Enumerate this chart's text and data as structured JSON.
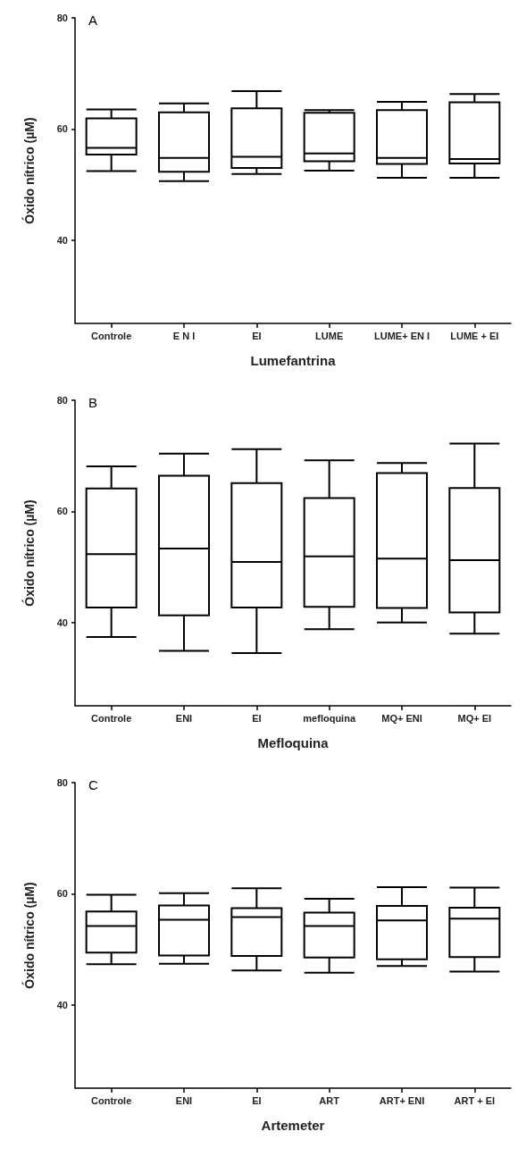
{
  "chart_data": [
    {
      "type": "box",
      "title": "A",
      "xlabel": "Lumefantrina",
      "ylabel": "Óxido nítrico (µM)",
      "categories": [
        "Controle",
        "E N I",
        "EI",
        "LUME",
        "LUME+ EN I",
        "LUME + EI"
      ],
      "ylim": [
        25,
        80
      ],
      "yticks": [
        40,
        60,
        80
      ],
      "grid": false,
      "boxes": [
        {
          "low": 52.4,
          "q1": 55.4,
          "median": 56.6,
          "q3": 61.9,
          "high": 63.5
        },
        {
          "low": 50.6,
          "q1": 52.3,
          "median": 54.8,
          "q3": 63.0,
          "high": 64.6
        },
        {
          "low": 51.9,
          "q1": 53.0,
          "median": 55.0,
          "q3": 63.7,
          "high": 66.8
        },
        {
          "low": 52.5,
          "q1": 54.2,
          "median": 55.6,
          "q3": 62.9,
          "high": 63.4
        },
        {
          "low": 51.2,
          "q1": 53.7,
          "median": 54.8,
          "q3": 63.4,
          "high": 64.9
        },
        {
          "low": 51.2,
          "q1": 53.8,
          "median": 54.6,
          "q3": 64.8,
          "high": 66.3
        }
      ]
    },
    {
      "type": "box",
      "title": "B",
      "xlabel": "Mefloquina",
      "ylabel": "Óxido nítrico (µM)",
      "categories": [
        "Controle",
        "ENI",
        "EI",
        "mefloquina",
        "MQ+ ENI",
        "MQ+ EI"
      ],
      "ylim": [
        25,
        80
      ],
      "yticks": [
        40,
        60,
        80
      ],
      "grid": false,
      "boxes": [
        {
          "low": 37.4,
          "q1": 42.7,
          "median": 52.3,
          "q3": 64.1,
          "high": 68.1
        },
        {
          "low": 34.9,
          "q1": 41.3,
          "median": 53.3,
          "q3": 66.4,
          "high": 70.4
        },
        {
          "low": 34.5,
          "q1": 42.7,
          "median": 50.9,
          "q3": 65.1,
          "high": 71.2
        },
        {
          "low": 38.8,
          "q1": 42.8,
          "median": 51.9,
          "q3": 62.4,
          "high": 69.2
        },
        {
          "low": 40.0,
          "q1": 42.6,
          "median": 51.5,
          "q3": 66.9,
          "high": 68.7
        },
        {
          "low": 38.0,
          "q1": 41.8,
          "median": 51.2,
          "q3": 64.2,
          "high": 72.2
        }
      ]
    },
    {
      "type": "box",
      "title": "C",
      "xlabel": "Artemeter",
      "ylabel": "Óxido nítrico (µM)",
      "categories": [
        "Controle",
        "ENI",
        "EI",
        "ART",
        "ART+ ENI",
        "ART + EI"
      ],
      "ylim": [
        25,
        80
      ],
      "yticks": [
        40,
        60,
        80
      ],
      "grid": false,
      "boxes": [
        {
          "low": 47.3,
          "q1": 49.4,
          "median": 54.2,
          "q3": 56.8,
          "high": 59.8
        },
        {
          "low": 47.4,
          "q1": 48.9,
          "median": 55.3,
          "q3": 57.9,
          "high": 60.1
        },
        {
          "low": 46.2,
          "q1": 48.8,
          "median": 55.8,
          "q3": 57.4,
          "high": 61.0
        },
        {
          "low": 45.8,
          "q1": 48.5,
          "median": 54.2,
          "q3": 56.6,
          "high": 59.1
        },
        {
          "low": 47.0,
          "q1": 48.2,
          "median": 55.2,
          "q3": 57.8,
          "high": 61.2
        },
        {
          "low": 46.0,
          "q1": 48.6,
          "median": 55.5,
          "q3": 57.5,
          "high": 61.1
        }
      ]
    }
  ]
}
